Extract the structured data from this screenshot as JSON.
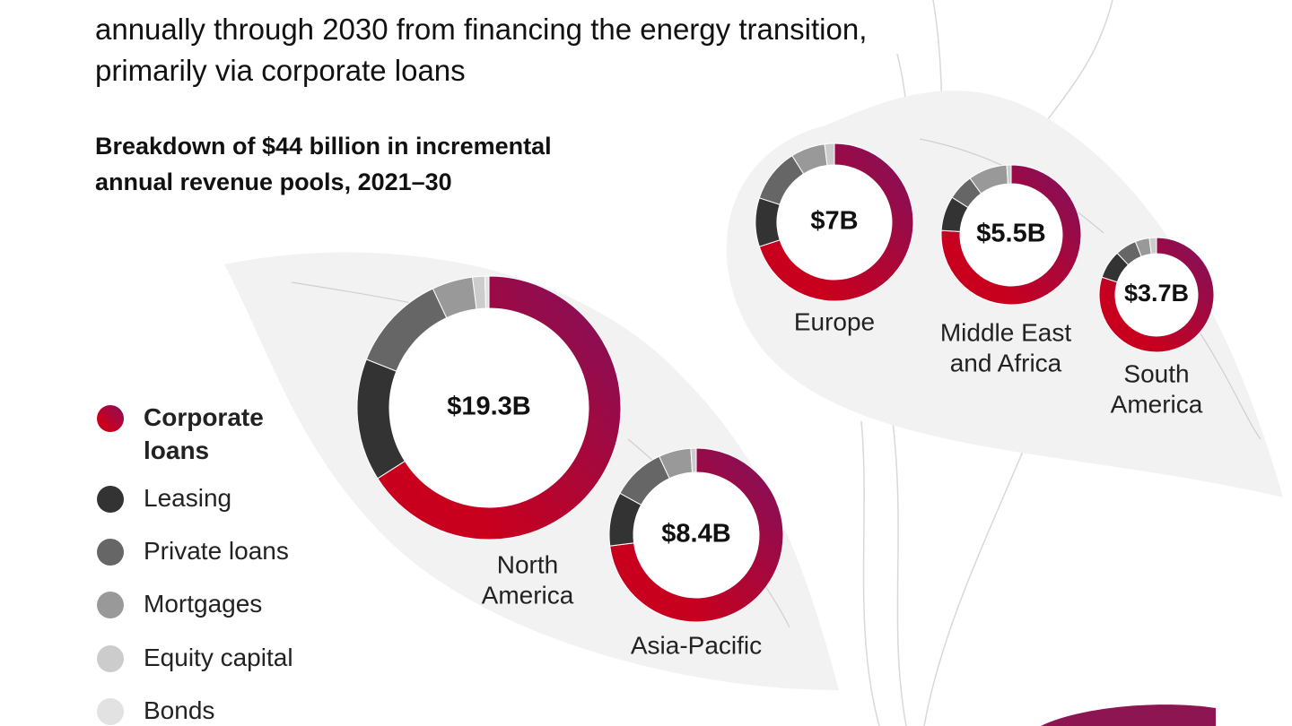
{
  "header": {
    "lines": [
      "annually through 2030 from financing the energy transition,",
      "primarily via corporate loans"
    ],
    "subtitle_lines": [
      "Breakdown of $44 billion in incremental",
      "annual revenue pools, 2021–30"
    ]
  },
  "legend": {
    "categories": [
      "Corporate loans",
      "Leasing",
      "Private loans",
      "Mortgages",
      "Equity capital",
      "Bonds"
    ],
    "colors": [
      "#c8001e",
      "#333333",
      "#666666",
      "#999999",
      "#cccccc",
      "#e2e2e2"
    ],
    "gradient_end": "#870f57"
  },
  "chart_data": [
    {
      "type": "donut",
      "label_lines": [
        "North",
        "America"
      ],
      "center_label": "$19.3B",
      "values": [
        66,
        15,
        12,
        5,
        1.5,
        0.5
      ]
    },
    {
      "type": "donut",
      "label_lines": [
        "Asia-Pacific"
      ],
      "center_label": "$8.4B",
      "values": [
        73,
        10,
        10,
        6,
        1,
        0
      ]
    },
    {
      "type": "donut",
      "label_lines": [
        "Europe"
      ],
      "center_label": "$7B",
      "values": [
        70,
        10,
        11,
        7,
        2,
        0
      ]
    },
    {
      "type": "donut",
      "label_lines": [
        "Middle East",
        "and Africa"
      ],
      "center_label": "$5.5B",
      "values": [
        76,
        8,
        6,
        9,
        1,
        0
      ]
    },
    {
      "type": "donut",
      "label_lines": [
        "South",
        "America"
      ],
      "center_label": "$3.7B",
      "values": [
        80,
        8,
        6,
        4,
        2,
        0
      ]
    }
  ]
}
